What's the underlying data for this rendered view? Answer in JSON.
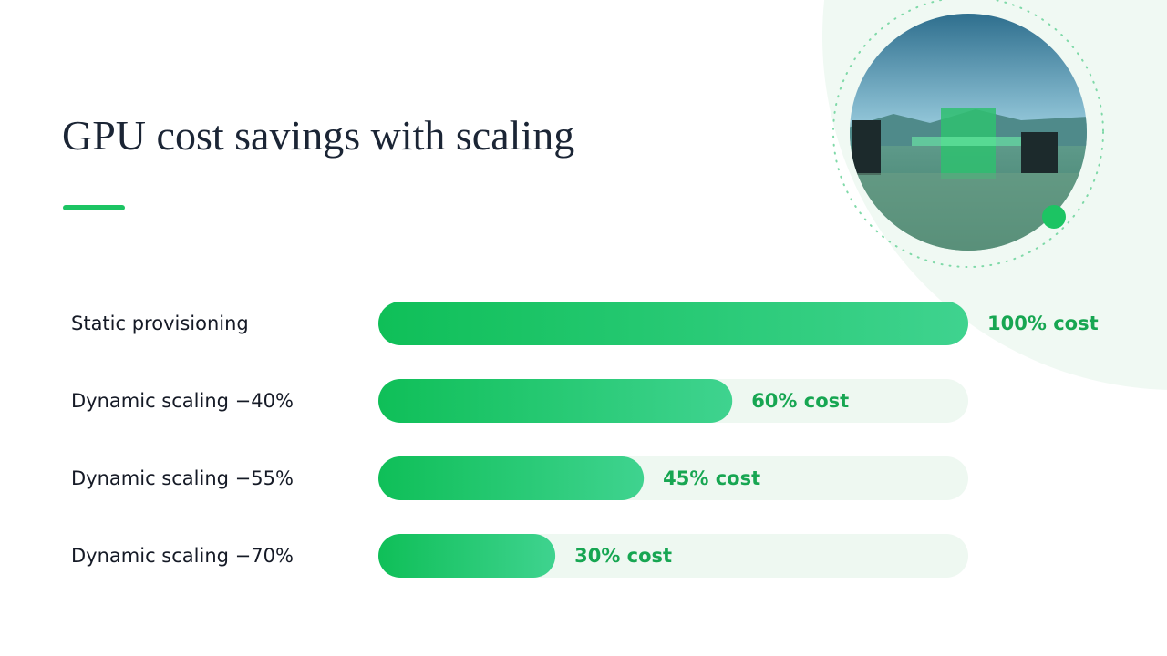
{
  "chart_data": {
    "type": "bar",
    "orientation": "horizontal",
    "title": "GPU cost savings with scaling",
    "categories": [
      "Static provisioning",
      "Dynamic scaling −40%",
      "Dynamic scaling −55%",
      "Dynamic scaling −70%"
    ],
    "values": [
      100,
      60,
      45,
      30
    ],
    "value_labels": [
      "100% cost",
      "60% cost",
      "45% cost",
      "30% cost"
    ],
    "xlim": [
      0,
      100
    ],
    "color": "#1cc463"
  }
}
